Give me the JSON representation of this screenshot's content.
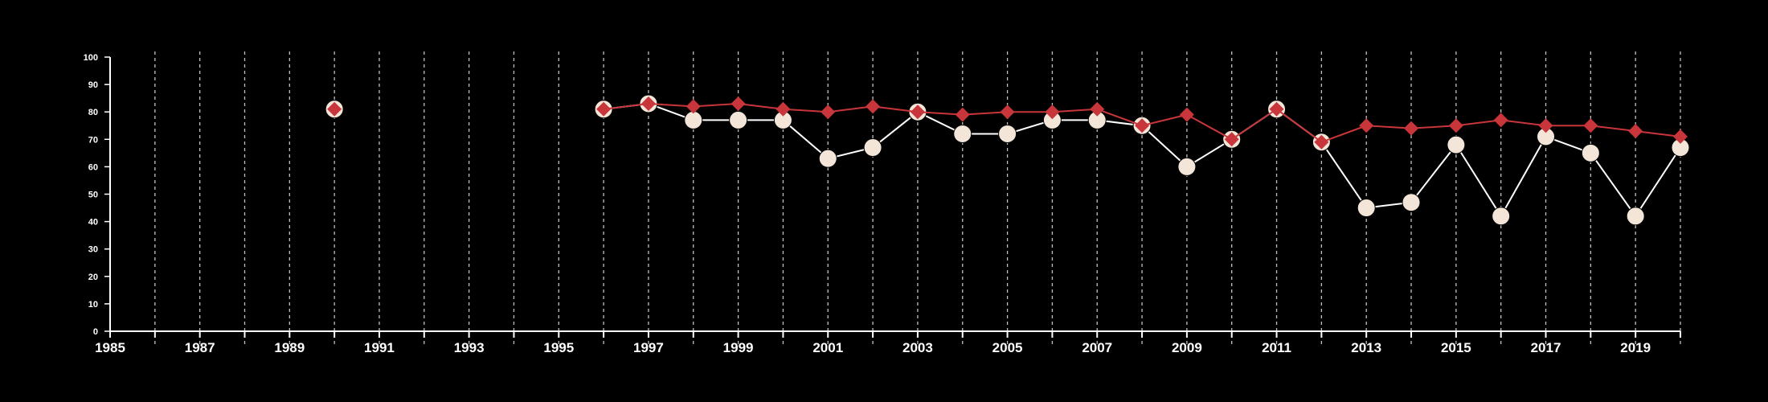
{
  "colors": {
    "background": "#000000",
    "axis": "#ffffff",
    "grid": "#bfbfbf",
    "series_white": "#ffffff",
    "series_white_marker": "#f3e6d8",
    "series_red": "#c8353a"
  },
  "chart_data": {
    "type": "line",
    "title": "",
    "xlabel": "",
    "ylabel": "",
    "xlim": [
      1985,
      2020
    ],
    "ylim": [
      0,
      100
    ],
    "x_ticks": [
      1985,
      1986,
      1987,
      1988,
      1989,
      1990,
      1991,
      1992,
      1993,
      1994,
      1995,
      1996,
      1997,
      1998,
      1999,
      2000,
      2001,
      2002,
      2003,
      2004,
      2005,
      2006,
      2007,
      2008,
      2009,
      2010,
      2011,
      2012,
      2013,
      2014,
      2015,
      2016,
      2017,
      2018,
      2019,
      2020
    ],
    "x_tick_labels": [
      "1985",
      "1987",
      "1989",
      "1991",
      "1993",
      "1995",
      "1997",
      "1999",
      "2001",
      "2003",
      "2005",
      "2007",
      "2009",
      "2011",
      "2013",
      "2015",
      "2017",
      "2019"
    ],
    "y_ticks": [
      0,
      10,
      20,
      30,
      40,
      50,
      60,
      70,
      80,
      90,
      100
    ],
    "grid": "vertical dashed at each year",
    "legend": "none",
    "series": [
      {
        "color": "#c8353a",
        "marker": "diamond",
        "points": [
          [
            1990,
            81
          ],
          [
            1996,
            81
          ],
          [
            1997,
            83
          ],
          [
            1998,
            82
          ],
          [
            1999,
            83
          ],
          [
            2000,
            81
          ],
          [
            2001,
            80
          ],
          [
            2002,
            82
          ],
          [
            2003,
            80
          ],
          [
            2004,
            79
          ],
          [
            2005,
            80
          ],
          [
            2006,
            80
          ],
          [
            2007,
            81
          ],
          [
            2008,
            75
          ],
          [
            2009,
            79
          ],
          [
            2010,
            70
          ],
          [
            2011,
            81
          ],
          [
            2012,
            69
          ],
          [
            2013,
            75
          ],
          [
            2014,
            74
          ],
          [
            2015,
            75
          ],
          [
            2016,
            77
          ],
          [
            2017,
            75
          ],
          [
            2018,
            75
          ],
          [
            2019,
            73
          ],
          [
            2020,
            71
          ]
        ]
      },
      {
        "color": "#ffffff",
        "marker": "circle",
        "points": [
          [
            1990,
            81
          ],
          [
            1996,
            81
          ],
          [
            1997,
            83
          ],
          [
            1998,
            77
          ],
          [
            1999,
            77
          ],
          [
            2000,
            77
          ],
          [
            2001,
            63
          ],
          [
            2002,
            67
          ],
          [
            2003,
            80
          ],
          [
            2004,
            72
          ],
          [
            2005,
            72
          ],
          [
            2006,
            77
          ],
          [
            2007,
            77
          ],
          [
            2008,
            75
          ],
          [
            2009,
            60
          ],
          [
            2010,
            70
          ],
          [
            2011,
            81
          ],
          [
            2012,
            69
          ],
          [
            2013,
            45
          ],
          [
            2014,
            47
          ],
          [
            2015,
            68
          ],
          [
            2016,
            42
          ],
          [
            2017,
            71
          ],
          [
            2018,
            65
          ],
          [
            2019,
            42
          ],
          [
            2020,
            67
          ]
        ]
      }
    ]
  }
}
